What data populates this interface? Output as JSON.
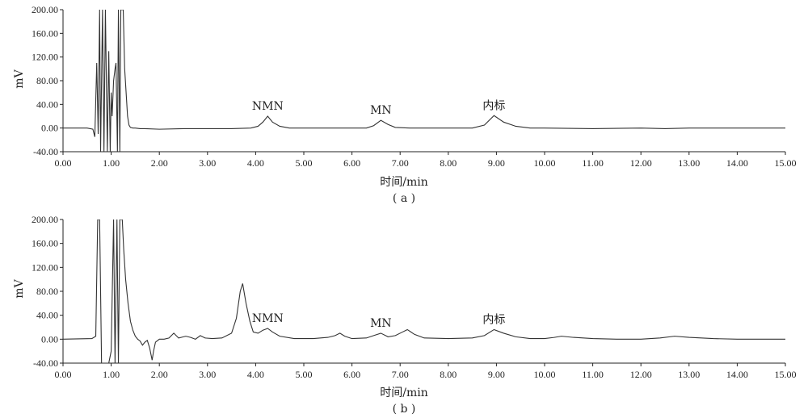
{
  "chart_data": [
    {
      "type": "line",
      "panel_label": "( a )",
      "xlabel": "时间/min",
      "ylabel": "mV",
      "xlim": [
        0,
        15
      ],
      "ylim": [
        -40,
        200
      ],
      "x_ticks": [
        "0.00",
        "1.00",
        "2.00",
        "3.00",
        "4.00",
        "5.00",
        "6.00",
        "7.00",
        "8.00",
        "9.00",
        "10.00",
        "11.00",
        "12.00",
        "13.00",
        "14.00",
        "15.00"
      ],
      "y_ticks": [
        "200.00",
        "160.00",
        "120.00",
        "80.00",
        "40.00",
        "0.00",
        "-40.00"
      ],
      "annotations": [
        {
          "text": "NMN",
          "x": 4.25,
          "y": 20
        },
        {
          "text": "MN",
          "x": 6.6,
          "y": 13
        },
        {
          "text": "内标",
          "x": 8.95,
          "y": 21
        }
      ],
      "series": [
        {
          "x": [
            0.0,
            0.5,
            0.62,
            0.66,
            0.7,
            0.73,
            0.76,
            0.78,
            0.82,
            0.85,
            0.88,
            0.92,
            0.95,
            0.98,
            1.0,
            1.02,
            1.05,
            1.08,
            1.1,
            1.13,
            1.15,
            1.18,
            1.2,
            1.22,
            1.25,
            1.28,
            1.31,
            1.34,
            1.37,
            1.4,
            1.45,
            1.5,
            1.6,
            1.7,
            2.0,
            2.5,
            3.0,
            3.5,
            3.9,
            4.05,
            4.15,
            4.25,
            4.35,
            4.5,
            4.7,
            5.0,
            5.5,
            6.0,
            6.3,
            6.45,
            6.6,
            6.75,
            6.9,
            7.2,
            7.6,
            8.0,
            8.5,
            8.75,
            8.95,
            9.15,
            9.4,
            9.7,
            10.0,
            11.0,
            12.0,
            12.5,
            13.0,
            14.0,
            15.0
          ],
          "y": [
            0,
            0,
            -2,
            -15,
            110,
            -10,
            200,
            -40,
            200,
            -40,
            200,
            -40,
            130,
            -40,
            60,
            20,
            80,
            100,
            110,
            -40,
            200,
            -40,
            200,
            200,
            200,
            100,
            60,
            20,
            5,
            1,
            0,
            0,
            -1,
            -1,
            -2,
            -1,
            -1,
            -1,
            0,
            3,
            10,
            20,
            10,
            3,
            0,
            0,
            0,
            0,
            0,
            4,
            13,
            6,
            1,
            0,
            0,
            0,
            0,
            5,
            21,
            10,
            3,
            0,
            0,
            -1,
            0,
            -1,
            0,
            0,
            0
          ]
        }
      ]
    },
    {
      "type": "line",
      "panel_label": "( b )",
      "xlabel": "时间/min",
      "ylabel": "mV",
      "xlim": [
        0,
        15
      ],
      "ylim": [
        -40,
        200
      ],
      "x_ticks": [
        "0.00",
        "1.00",
        "2.00",
        "3.00",
        "4.00",
        "5.00",
        "6.00",
        "7.00",
        "8.00",
        "9.00",
        "10.00",
        "11.00",
        "12.00",
        "13.00",
        "14.00",
        "15.00"
      ],
      "y_ticks": [
        "200.00",
        "160.00",
        "120.00",
        "80.00",
        "40.00",
        "0.00",
        "-40.00"
      ],
      "annotations": [
        {
          "text": "NMN",
          "x": 4.25,
          "y": 18
        },
        {
          "text": "MN",
          "x": 6.6,
          "y": 10
        },
        {
          "text": "内标",
          "x": 8.95,
          "y": 16
        }
      ],
      "series": [
        {
          "x": [
            0.0,
            0.6,
            0.68,
            0.72,
            0.76,
            0.8,
            0.84,
            0.9,
            0.95,
            1.0,
            1.05,
            1.08,
            1.12,
            1.15,
            1.18,
            1.2,
            1.23,
            1.26,
            1.3,
            1.35,
            1.4,
            1.45,
            1.5,
            1.55,
            1.6,
            1.65,
            1.7,
            1.75,
            1.8,
            1.85,
            1.88,
            1.92,
            2.0,
            2.1,
            2.2,
            2.3,
            2.4,
            2.55,
            2.65,
            2.75,
            2.85,
            2.95,
            3.1,
            3.3,
            3.5,
            3.6,
            3.68,
            3.73,
            3.8,
            3.88,
            3.95,
            4.05,
            4.15,
            4.25,
            4.35,
            4.5,
            4.8,
            5.2,
            5.5,
            5.65,
            5.75,
            5.85,
            6.0,
            6.3,
            6.45,
            6.6,
            6.75,
            6.9,
            7.05,
            7.15,
            7.3,
            7.5,
            8.0,
            8.5,
            8.75,
            8.95,
            9.15,
            9.4,
            9.7,
            10.0,
            10.2,
            10.35,
            10.6,
            11.0,
            11.5,
            12.0,
            12.4,
            12.7,
            13.0,
            13.5,
            14.0,
            15.0
          ],
          "y": [
            0,
            1,
            5,
            200,
            200,
            -40,
            -40,
            -40,
            -40,
            -20,
            200,
            -40,
            200,
            -40,
            200,
            200,
            200,
            150,
            100,
            60,
            30,
            15,
            5,
            0,
            -3,
            -10,
            -5,
            -2,
            -15,
            -35,
            -20,
            -5,
            0,
            0,
            2,
            10,
            2,
            5,
            3,
            0,
            6,
            2,
            1,
            2,
            10,
            35,
            80,
            93,
            60,
            30,
            12,
            10,
            15,
            18,
            12,
            5,
            1,
            1,
            3,
            6,
            10,
            5,
            1,
            2,
            6,
            10,
            4,
            6,
            12,
            16,
            8,
            2,
            1,
            2,
            6,
            16,
            10,
            4,
            1,
            1,
            3,
            5,
            3,
            1,
            0,
            0,
            2,
            5,
            3,
            1,
            0,
            0
          ]
        }
      ]
    }
  ]
}
